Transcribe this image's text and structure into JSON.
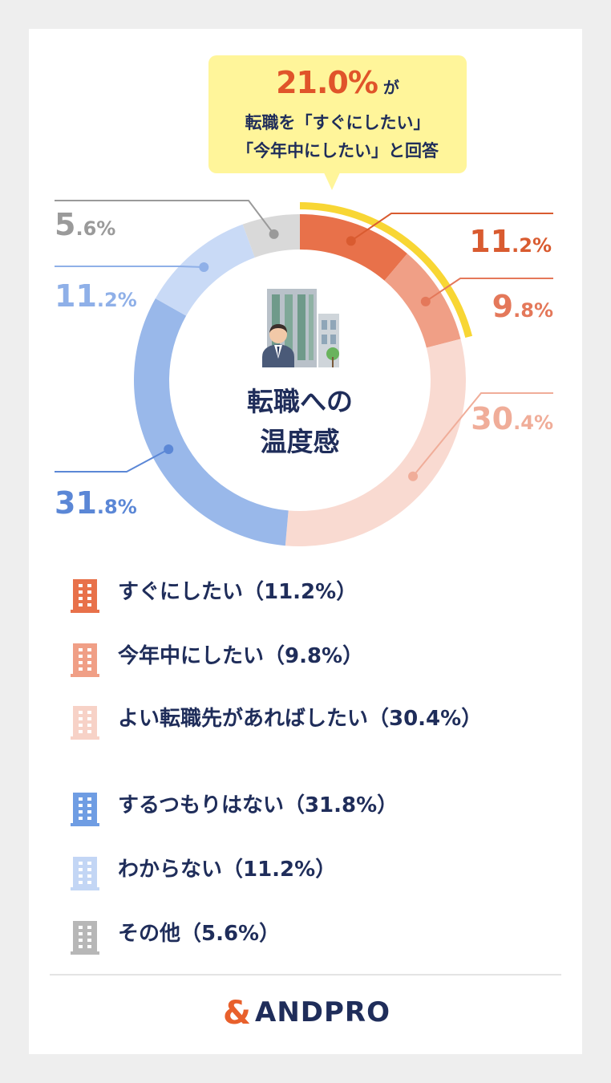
{
  "callout": {
    "headline_value": "21.0%",
    "headline_suffix": "が",
    "line2": "転職を「すぐにしたい」",
    "line3": "「今年中にしたい」と回答"
  },
  "center_title": {
    "line1": "転職への",
    "line2": "温度感"
  },
  "chart_data": {
    "type": "pie",
    "donut": true,
    "start_angle_deg": 0,
    "direction": "clockwise",
    "highlight": {
      "categories": [
        "すぐにしたい",
        "今年中にしたい"
      ],
      "total_label": "21.0%",
      "color": "#f8d634"
    },
    "slices": [
      {
        "label": "すぐにしたい",
        "value": 11.2,
        "value_label": "11.2%",
        "color": "#e8714a",
        "text_color": "#d95b30",
        "legend_icon_color": "#e8714a"
      },
      {
        "label": "今年中にしたい",
        "value": 9.8,
        "value_label": "9.8%",
        "color": "#f09f86",
        "text_color": "#e4785a",
        "legend_icon_color": "#f09f86"
      },
      {
        "label": "よい転職先があればしたい",
        "value": 30.4,
        "value_label": "30.4%",
        "color": "#f9dad1",
        "text_color": "#f0ad99",
        "legend_icon_color": "#f7d2c7"
      },
      {
        "label": "するつもりはない",
        "value": 31.8,
        "value_label": "31.8%",
        "color": "#99b8ea",
        "text_color": "#5b87d6",
        "legend_icon_color": "#6f9de3"
      },
      {
        "label": "わからない",
        "value": 11.2,
        "value_label": "11.2%",
        "color": "#c9daf6",
        "text_color": "#8fb0e8",
        "legend_icon_color": "#c3d6f5"
      },
      {
        "label": "その他",
        "value": 5.6,
        "value_label": "5.6%",
        "color": "#d9d9d9",
        "text_color": "#9a9a9a",
        "legend_icon_color": "#b7b7b7"
      }
    ]
  },
  "legend": [
    {
      "text": "すぐにしたい（11.2%）"
    },
    {
      "text": "今年中にしたい（9.8%）"
    },
    {
      "text": "よい転職先があればしたい（30.4%）"
    },
    {
      "text": "するつもりはない（31.8%）"
    },
    {
      "text": "わからない（11.2%）"
    },
    {
      "text": "その他（5.6%）"
    }
  ],
  "brand": {
    "mark": "&",
    "name": "ANDPRO",
    "mark_color": "#e8602c",
    "text_color": "#1f2d5a"
  }
}
